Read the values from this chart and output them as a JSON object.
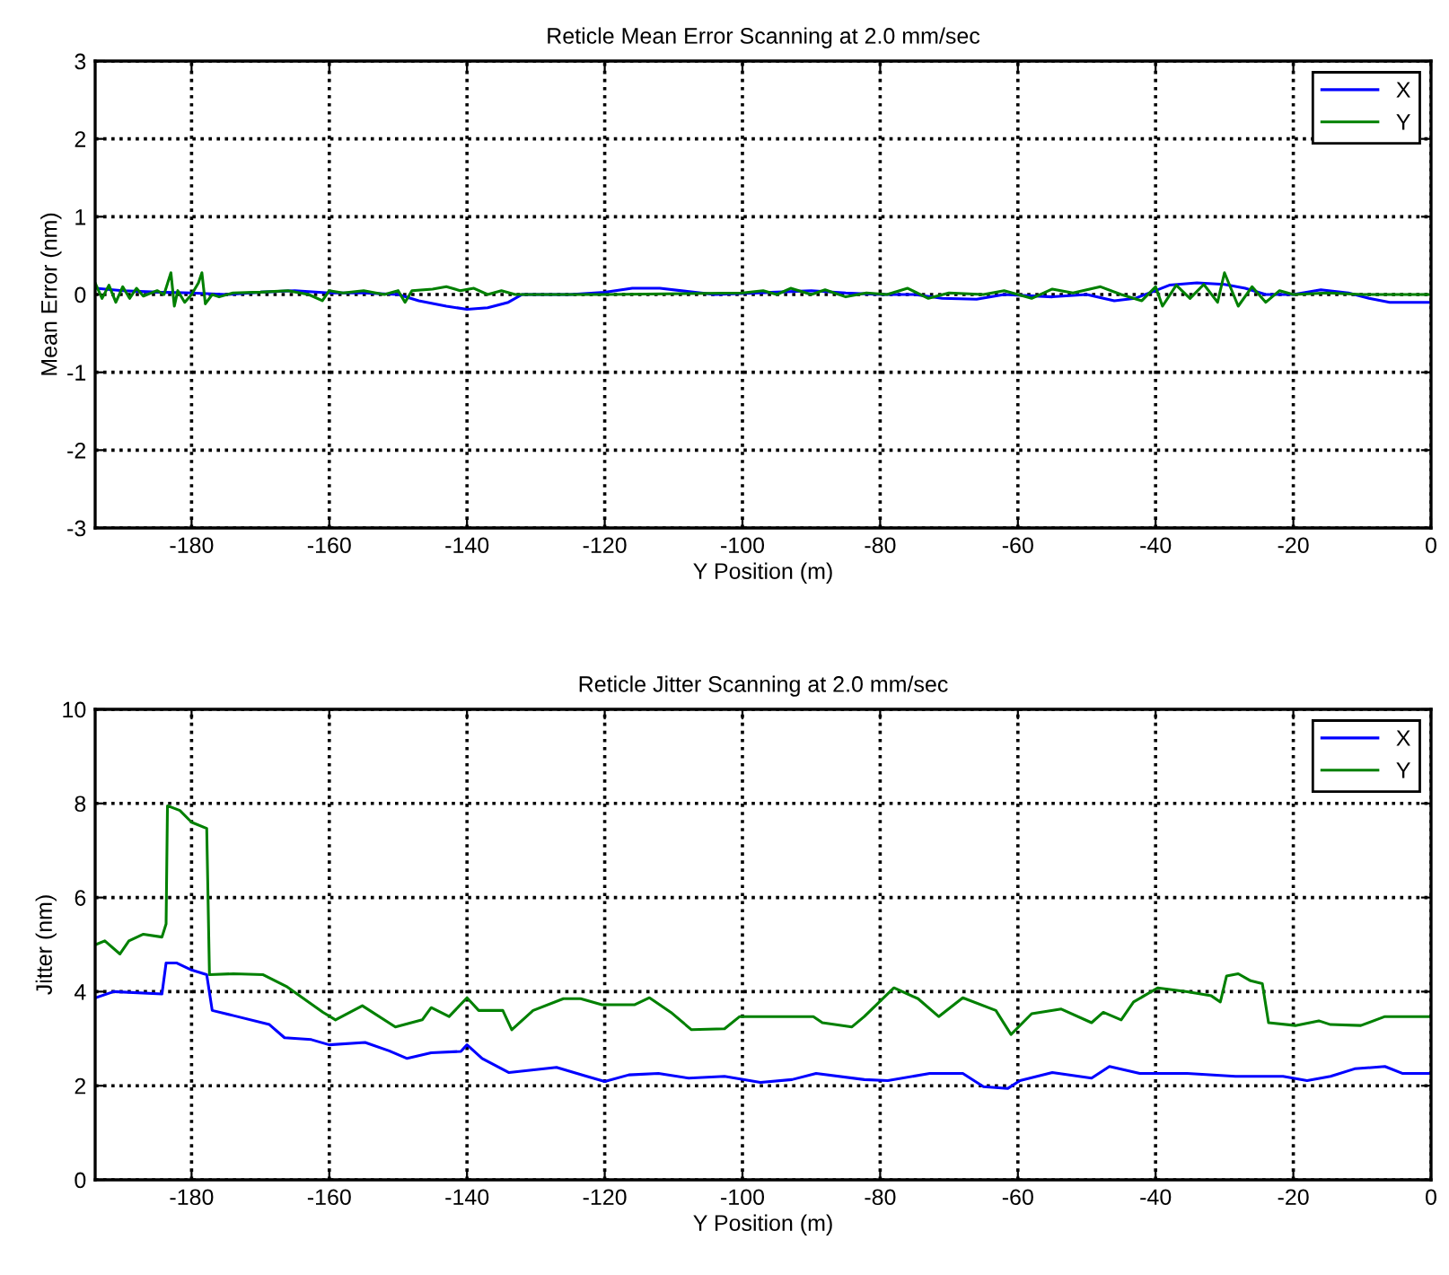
{
  "chart_data": [
    {
      "type": "line",
      "title": "Reticle Mean Error Scanning at 2.0 mm/sec",
      "xlabel": "Y Position (m)",
      "ylabel": "Mean Error (nm)",
      "xlim": [
        -194,
        0
      ],
      "xticks": [
        -180,
        -160,
        -140,
        -120,
        -100,
        -80,
        -60,
        -40,
        -20,
        0
      ],
      "ylim": [
        -3,
        3
      ],
      "yticks": [
        -3,
        -2,
        -1,
        0,
        1,
        2,
        3
      ],
      "grid": true,
      "legend": "top right",
      "line_style": "solid",
      "series": [
        {
          "name": "X",
          "color": "#0000ff",
          "x": [
            -194,
            -190,
            -185,
            -180,
            -175,
            -170,
            -165,
            -160,
            -155,
            -150,
            -147,
            -143,
            -140,
            -137,
            -134,
            -132,
            -125,
            -120,
            -116,
            -112,
            -108,
            -104,
            -95,
            -90,
            -85,
            -80,
            -75,
            -71,
            -66,
            -62,
            -55,
            -50,
            -46,
            -43,
            -40,
            -38,
            -34,
            -30,
            -27,
            -24,
            -20,
            -16,
            -12,
            -9,
            -6,
            0
          ],
          "values": [
            0.08,
            0.05,
            0.03,
            0.02,
            0,
            0.03,
            0.05,
            0.02,
            0.02,
            0,
            -0.08,
            -0.15,
            -0.19,
            -0.17,
            -0.1,
            0,
            0,
            0.03,
            0.08,
            0.08,
            0.04,
            0,
            0.03,
            0.05,
            0.02,
            0,
            0,
            -0.05,
            -0.06,
            0,
            -0.03,
            0,
            -0.08,
            -0.05,
            0.05,
            0.12,
            0.15,
            0.13,
            0.08,
            0,
            0,
            0.06,
            0.02,
            -0.05,
            -0.1,
            -0.1
          ]
        },
        {
          "name": "Y",
          "color": "#008000",
          "x": [
            -194,
            -193,
            -192,
            -191,
            -190,
            -189,
            -188,
            -187,
            -185,
            -184,
            -183,
            -182.5,
            -182,
            -181,
            -180,
            -179,
            -178.5,
            -178,
            -177,
            -176,
            -174,
            -170,
            -166,
            -163,
            -161,
            -160,
            -158,
            -155,
            -152,
            -150,
            -149,
            -148,
            -145,
            -143,
            -141,
            -139,
            -137,
            -135,
            -133,
            -120,
            -100,
            -97,
            -95,
            -93,
            -90,
            -88,
            -85,
            -82,
            -79,
            -76,
            -73,
            -70,
            -65,
            -62,
            -58,
            -55,
            -52,
            -48,
            -45,
            -42,
            -40,
            -39,
            -37,
            -35,
            -33,
            -31,
            -30,
            -28,
            -26,
            -24,
            -22,
            -20,
            -15,
            -10,
            0
          ],
          "values": [
            0.15,
            -0.05,
            0.12,
            -0.1,
            0.1,
            -0.05,
            0.08,
            -0.02,
            0.05,
            0,
            0.28,
            -0.15,
            0.05,
            -0.1,
            0,
            0.15,
            0.28,
            -0.12,
            0,
            -0.03,
            0.02,
            0.03,
            0.05,
            0,
            -0.08,
            0.05,
            0.02,
            0.05,
            0,
            0.05,
            -0.1,
            0.05,
            0.07,
            0.1,
            0.05,
            0.08,
            0,
            0.05,
            0,
            0,
            0.02,
            0.05,
            0,
            0.08,
            0,
            0.06,
            -0.03,
            0.02,
            0,
            0.08,
            -0.05,
            0.02,
            0,
            0.05,
            -0.05,
            0.07,
            0.02,
            0.1,
            0,
            -0.08,
            0.1,
            -0.15,
            0.12,
            -0.05,
            0.13,
            -0.1,
            0.28,
            -0.15,
            0.1,
            -0.1,
            0.05,
            0,
            0.02,
            0,
            0
          ]
        }
      ]
    },
    {
      "type": "line",
      "title": "Reticle Jitter Scanning at 2.0 mm/sec",
      "xlabel": "Y Position (m)",
      "ylabel": "Jitter (nm)",
      "xlim": [
        -194,
        0
      ],
      "xticks": [
        -180,
        -160,
        -140,
        -120,
        -100,
        -80,
        -60,
        -40,
        -20,
        0
      ],
      "ylim": [
        0,
        10
      ],
      "yticks": [
        0,
        2,
        4,
        6,
        8,
        10
      ],
      "grid": true,
      "legend": "top right",
      "line_style": "solid",
      "series": [
        {
          "name": "X",
          "color": "#0000ff",
          "x": [
            -193.9,
            -191.3,
            -184.3,
            -183.7,
            -182.2,
            -180,
            -177.8,
            -177,
            -173.9,
            -168.7,
            -166.5,
            -162.6,
            -160,
            -154.8,
            -151.3,
            -148.7,
            -145.2,
            -140.9,
            -140,
            -137.8,
            -133.9,
            -127,
            -122.6,
            -120,
            -116.5,
            -112.2,
            -107.8,
            -102.6,
            -97.4,
            -92.8,
            -89.3,
            -82.3,
            -78.9,
            -72.8,
            -68,
            -65,
            -61.5,
            -59.7,
            -55,
            -49.3,
            -46.7,
            -42.3,
            -35.4,
            -28.4,
            -21.5,
            -18,
            -14.6,
            -11.1,
            -6.7,
            -4.1,
            0
          ],
          "values": [
            3.87,
            4.0,
            3.95,
            4.61,
            4.61,
            4.46,
            4.36,
            3.6,
            3.49,
            3.3,
            3.02,
            2.98,
            2.87,
            2.92,
            2.74,
            2.58,
            2.7,
            2.73,
            2.87,
            2.58,
            2.28,
            2.39,
            2.2,
            2.09,
            2.23,
            2.26,
            2.16,
            2.2,
            2.07,
            2.13,
            2.26,
            2.13,
            2.11,
            2.26,
            2.26,
            1.98,
            1.94,
            2.11,
            2.28,
            2.16,
            2.41,
            2.26,
            2.26,
            2.2,
            2.2,
            2.11,
            2.2,
            2.36,
            2.41,
            2.26,
            2.26
          ]
        },
        {
          "name": "Y",
          "color": "#008000",
          "x": [
            -193.9,
            -192.6,
            -190.4,
            -189.1,
            -187,
            -184.3,
            -183.7,
            -183.5,
            -181.7,
            -180,
            -177.8,
            -177.4,
            -173.9,
            -169.6,
            -166.1,
            -160.9,
            -159.1,
            -155.2,
            -150.4,
            -146.5,
            -145.2,
            -142.6,
            -140,
            -138.3,
            -134.8,
            -133.5,
            -130.4,
            -126,
            -123.5,
            -120.4,
            -115.7,
            -113.5,
            -110.4,
            -107.4,
            -102.6,
            -100.4,
            -95.7,
            -89.7,
            -88.4,
            -84.1,
            -82.3,
            -78,
            -74.5,
            -71.5,
            -68,
            -63.2,
            -61,
            -58,
            -53.7,
            -49.3,
            -47.6,
            -45,
            -43.2,
            -39.7,
            -35.4,
            -31.9,
            -30.6,
            -29.7,
            -28,
            -26.2,
            -24.5,
            -23.6,
            -19.7,
            -16.3,
            -14.6,
            -10.2,
            -6.7,
            0
          ],
          "values": [
            5.0,
            5.08,
            4.8,
            5.08,
            5.22,
            5.16,
            5.44,
            7.95,
            7.85,
            7.6,
            7.47,
            4.36,
            4.38,
            4.36,
            4.1,
            3.56,
            3.4,
            3.7,
            3.25,
            3.4,
            3.66,
            3.47,
            3.87,
            3.6,
            3.6,
            3.19,
            3.6,
            3.85,
            3.85,
            3.72,
            3.72,
            3.87,
            3.56,
            3.19,
            3.21,
            3.47,
            3.47,
            3.47,
            3.34,
            3.25,
            3.47,
            4.08,
            3.85,
            3.47,
            3.87,
            3.6,
            3.09,
            3.53,
            3.63,
            3.34,
            3.56,
            3.4,
            3.78,
            4.08,
            4.0,
            3.91,
            3.78,
            4.33,
            4.38,
            4.23,
            4.17,
            3.34,
            3.28,
            3.38,
            3.3,
            3.28,
            3.47,
            3.47
          ]
        }
      ]
    }
  ]
}
